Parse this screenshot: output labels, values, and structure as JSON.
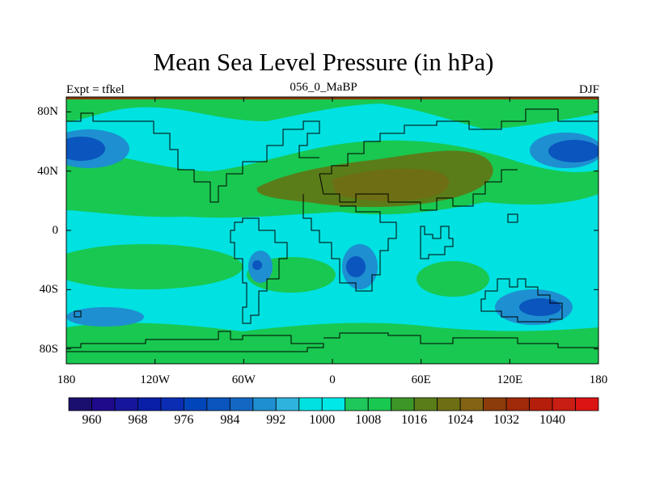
{
  "chart_data": {
    "type": "heatmap",
    "title": "Mean Sea Level Pressure (in hPa)",
    "left_string": "Expt = tfkel",
    "center_string": "056_0_MaBP",
    "right_string": "DJF",
    "x": {
      "range": [
        -180,
        180
      ],
      "ticks": [
        -180,
        -120,
        -60,
        0,
        60,
        120,
        180
      ],
      "tick_labels": [
        "180",
        "120W",
        "60W",
        "0",
        "60E",
        "120E",
        "180"
      ]
    },
    "y": {
      "range": [
        -90,
        90
      ],
      "ticks": [
        80,
        40,
        0,
        -40,
        -80
      ],
      "tick_labels": [
        "80N",
        "40N",
        "0",
        "40S",
        "80S"
      ]
    },
    "colorbar": {
      "levels": [
        956,
        960,
        964,
        968,
        972,
        976,
        980,
        984,
        988,
        992,
        996,
        1000,
        1004,
        1008,
        1012,
        1016,
        1020,
        1024,
        1028,
        1032,
        1036,
        1040,
        1044
      ],
      "labeled": [
        "960",
        "968",
        "976",
        "984",
        "992",
        "1000",
        "1008",
        "1016",
        "1024",
        "1032",
        "1040"
      ],
      "colors": [
        "#1a0f6e",
        "#200a8c",
        "#16169c",
        "#0a1fa8",
        "#0a2db4",
        "#0045b9",
        "#0a55be",
        "#1468c4",
        "#1e8fd0",
        "#2eb3de",
        "#00e1e1",
        "#00e8e8",
        "#1fc85a",
        "#19c850",
        "#3c9628",
        "#5a7d19",
        "#6e6e14",
        "#826414",
        "#8c3c0a",
        "#a02a0a",
        "#b41e0a",
        "#c81e14",
        "#dc1414"
      ]
    },
    "fields": [
      {
        "name": "high-asia",
        "lon": 60,
        "lat": 40,
        "value": 1020
      },
      {
        "name": "low-north-pacific-west",
        "lon": -170,
        "lat": 57,
        "value": 980
      },
      {
        "name": "low-north-pacific-east",
        "lon": 160,
        "lat": 55,
        "value": 980
      },
      {
        "name": "low-south-africa",
        "lon": 15,
        "lat": -27,
        "value": 988
      },
      {
        "name": "low-south-america",
        "lon": -50,
        "lat": -25,
        "value": 988
      },
      {
        "name": "low-australia",
        "lon": 140,
        "lat": -52,
        "value": 988
      }
    ]
  }
}
